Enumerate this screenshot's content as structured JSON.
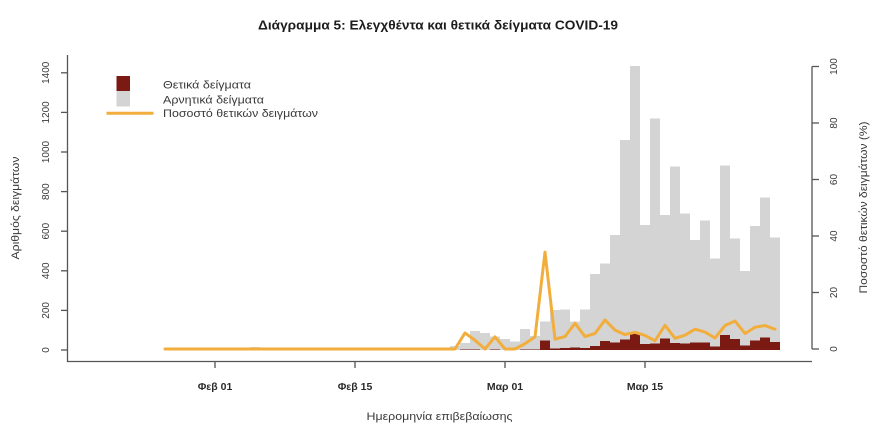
{
  "title": "Διάγραμμα 5: Ελεγχθέντα και θετικά δείγματα COVID-19",
  "colors": {
    "positive": "#7b1a13",
    "negative": "#d4d4d4",
    "percent_line": "#f2ae3c",
    "axis": "#555555",
    "background": "#ffffff"
  },
  "legend": {
    "items": [
      {
        "label": "Θετικά δείγματα",
        "type": "box",
        "color_key": "positive"
      },
      {
        "label": "Αρνητικά δείγματα",
        "type": "box",
        "color_key": "negative"
      },
      {
        "label": "Ποσοστό θετικών δειγμάτων",
        "type": "line",
        "color_key": "percent_line"
      }
    ]
  },
  "axes": {
    "x_label": "Ημερομηνία επιβεβαίωσης",
    "y_left_label": "Αριθμός δειγμάτων",
    "y_right_label": "Ποσοστό θετικών δειγμάτων (%)",
    "x_ticks": [
      "Φεβ 01",
      "Φεβ 15",
      "Μαρ 01",
      "Μαρ 15"
    ],
    "y_left_ticks": [
      0,
      200,
      400,
      600,
      800,
      1000,
      1200,
      1400
    ],
    "y_right_ticks": [
      0,
      20,
      40,
      60,
      80,
      100
    ]
  },
  "chart_data": {
    "type": "bar",
    "subtype": "stacked bar with secondary-axis line",
    "title": "Διάγραμμα 5: Ελεγχθέντα και θετικά δείγματα COVID-19",
    "xlabel": "Ημερομηνία επιβεβαίωσης",
    "ylabel": "Αριθμός δειγμάτων",
    "ylabel_right": "Ποσοστό θετικών δειγμάτων (%)",
    "ylim": [
      0,
      1400
    ],
    "ylim_right": [
      0,
      100
    ],
    "grid": false,
    "legend_position": "top-left",
    "x_tick_labels": [
      "Φεβ 01",
      "Φεβ 15",
      "Μαρ 01",
      "Μαρ 15"
    ],
    "x": [
      "Ιαν 27",
      "Ιαν 28",
      "Ιαν 29",
      "Ιαν 30",
      "Ιαν 31",
      "Φεβ 01",
      "Φεβ 02",
      "Φεβ 03",
      "Φεβ 04",
      "Φεβ 05",
      "Φεβ 06",
      "Φεβ 07",
      "Φεβ 08",
      "Φεβ 09",
      "Φεβ 10",
      "Φεβ 11",
      "Φεβ 12",
      "Φεβ 13",
      "Φεβ 14",
      "Φεβ 15",
      "Φεβ 16",
      "Φεβ 17",
      "Φεβ 18",
      "Φεβ 19",
      "Φεβ 20",
      "Φεβ 21",
      "Φεβ 22",
      "Φεβ 23",
      "Φεβ 24",
      "Φεβ 25",
      "Φεβ 26",
      "Φεβ 27",
      "Φεβ 28",
      "Φεβ 29",
      "Μαρ 01",
      "Μαρ 02",
      "Μαρ 03",
      "Μαρ 04",
      "Μαρ 05",
      "Μαρ 06",
      "Μαρ 07",
      "Μαρ 08",
      "Μαρ 09",
      "Μαρ 10",
      "Μαρ 11",
      "Μαρ 12",
      "Μαρ 13",
      "Μαρ 14",
      "Μαρ 15",
      "Μαρ 16",
      "Μαρ 17",
      "Μαρ 18",
      "Μαρ 19",
      "Μαρ 20",
      "Μαρ 21",
      "Μαρ 22",
      "Μαρ 23",
      "Μαρ 24",
      "Μαρ 25",
      "Μαρ 26",
      "Μαρ 27",
      "Μαρ 28"
    ],
    "series": [
      {
        "name": "Θετικά δείγματα",
        "render": "bar",
        "stack": "samples",
        "axis": "left",
        "color": "#7b1a13",
        "values": [
          0,
          0,
          0,
          0,
          0,
          0,
          0,
          0,
          0,
          0,
          0,
          0,
          0,
          0,
          0,
          0,
          0,
          0,
          0,
          0,
          0,
          0,
          0,
          0,
          0,
          0,
          0,
          0,
          0,
          0,
          2,
          3,
          0,
          3,
          0,
          0,
          2,
          3,
          49,
          7,
          9,
          13,
          9,
          21,
          45,
          39,
          54,
          84,
          30,
          34,
          57,
          35,
          34,
          39,
          39,
          18,
          77,
          56,
          22,
          48,
          64,
          40
        ]
      },
      {
        "name": "Αρνητικά δείγματα",
        "render": "bar",
        "stack": "samples",
        "axis": "left",
        "color": "#d4d4d4",
        "values": [
          0,
          0,
          0,
          0,
          0,
          0,
          0,
          0,
          0,
          15,
          0,
          0,
          0,
          0,
          0,
          0,
          0,
          0,
          0,
          0,
          0,
          0,
          0,
          0,
          0,
          0,
          0,
          3,
          10,
          20,
          33,
          94,
          85,
          66,
          55,
          42,
          104,
          67,
          94,
          195,
          196,
          130,
          196,
          363,
          393,
          542,
          1007,
          1350,
          601,
          1136,
          625,
          891,
          656,
          517,
          614,
          445,
          854,
          508,
          378,
          578,
          707,
          529
        ]
      },
      {
        "name": "Ποσοστό θετικών δειγμάτων",
        "render": "line",
        "axis": "right",
        "color": "#f2ae3c",
        "values": [
          0,
          0,
          0,
          0,
          0,
          0,
          0,
          0,
          0,
          0,
          0,
          0,
          0,
          0,
          0,
          0,
          0,
          0,
          0,
          0,
          0,
          0,
          0,
          0,
          0,
          0,
          0,
          0,
          0,
          0,
          5.7,
          3.1,
          0,
          4.3,
          0,
          0,
          1.9,
          4.3,
          34.3,
          3.5,
          4.4,
          9.1,
          4.4,
          5.5,
          10.3,
          6.7,
          5.1,
          5.9,
          4.8,
          2.9,
          8.4,
          3.8,
          4.9,
          7.0,
          6.0,
          3.9,
          8.3,
          9.9,
          5.5,
          7.7,
          8.3,
          7.0
        ]
      }
    ]
  }
}
